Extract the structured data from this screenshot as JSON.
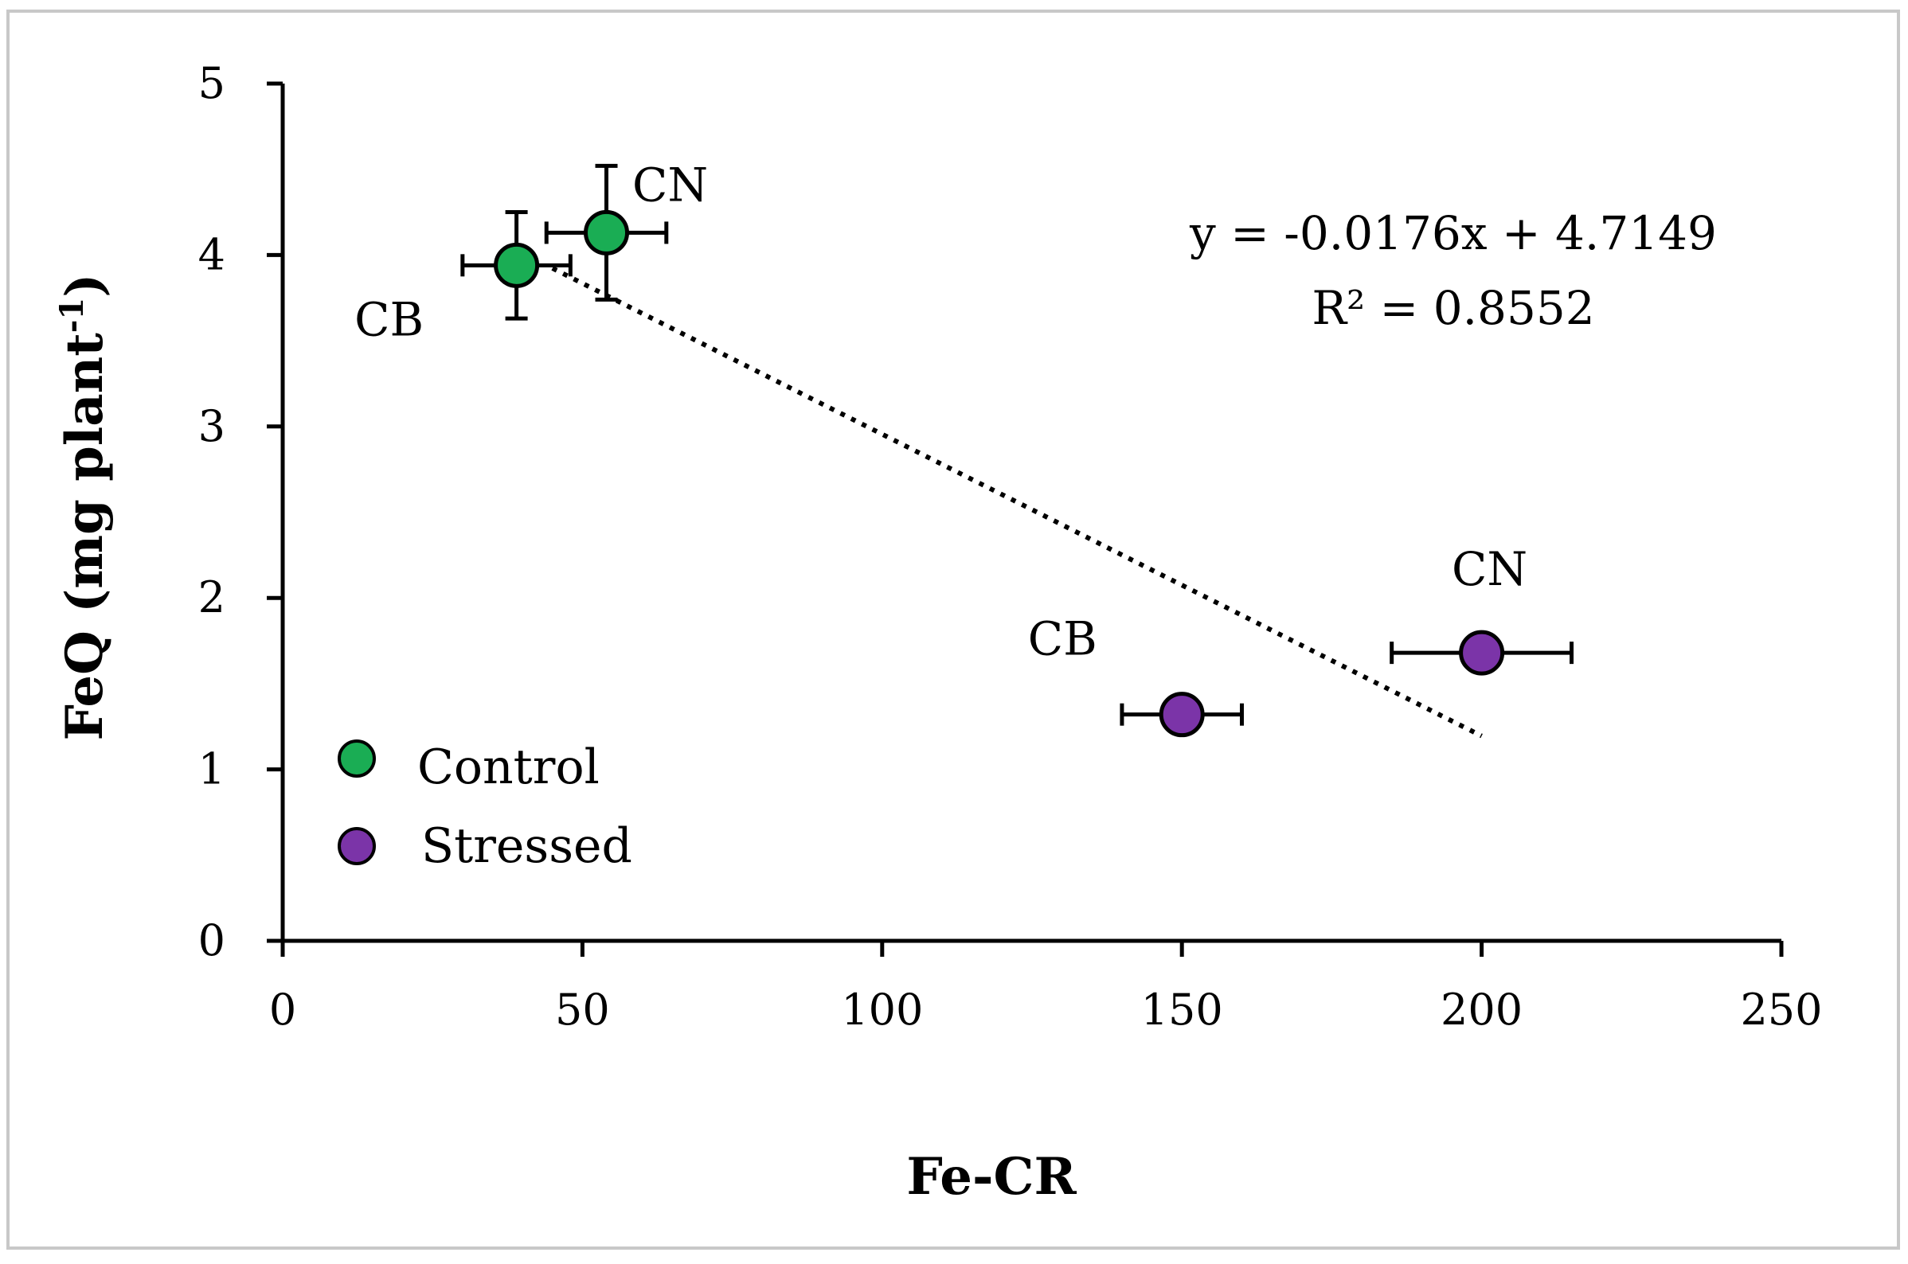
{
  "chart_data": {
    "type": "scatter",
    "title": "",
    "xlabel": "Fe-CR",
    "ylabel": "FeQ (mg plant",
    "ylabel_sup": "-1",
    "ylabel_close": ")",
    "xlim": [
      0,
      250
    ],
    "ylim": [
      0,
      5
    ],
    "x_ticks": [
      0,
      50,
      100,
      150,
      200,
      250
    ],
    "y_ticks": [
      0,
      1,
      2,
      3,
      4,
      5
    ],
    "grid": false,
    "legend_position": "bottom-left",
    "series": [
      {
        "name": "Control",
        "color": "#1aad54",
        "points": [
          {
            "label": "CB",
            "x": 39,
            "y": 3.94,
            "x_err": 9,
            "y_err": 0.31
          },
          {
            "label": "CN",
            "x": 54,
            "y": 4.13,
            "x_err": 10,
            "y_err": 0.39
          }
        ]
      },
      {
        "name": "Stressed",
        "color": "#7b34a8",
        "points": [
          {
            "label": "CB",
            "x": 150,
            "y": 1.32,
            "x_err": 10,
            "y_err": 0.06
          },
          {
            "label": "CN",
            "x": 200,
            "y": 1.68,
            "x_err": 15,
            "y_err": 0.1
          }
        ]
      }
    ],
    "trendline": {
      "slope": -0.0176,
      "intercept": 4.7149,
      "x_range": [
        45,
        200
      ],
      "style": "dotted",
      "equation_text": "y = -0.0176x + 4.7149",
      "r2_text": "R² = 0.8552"
    }
  }
}
